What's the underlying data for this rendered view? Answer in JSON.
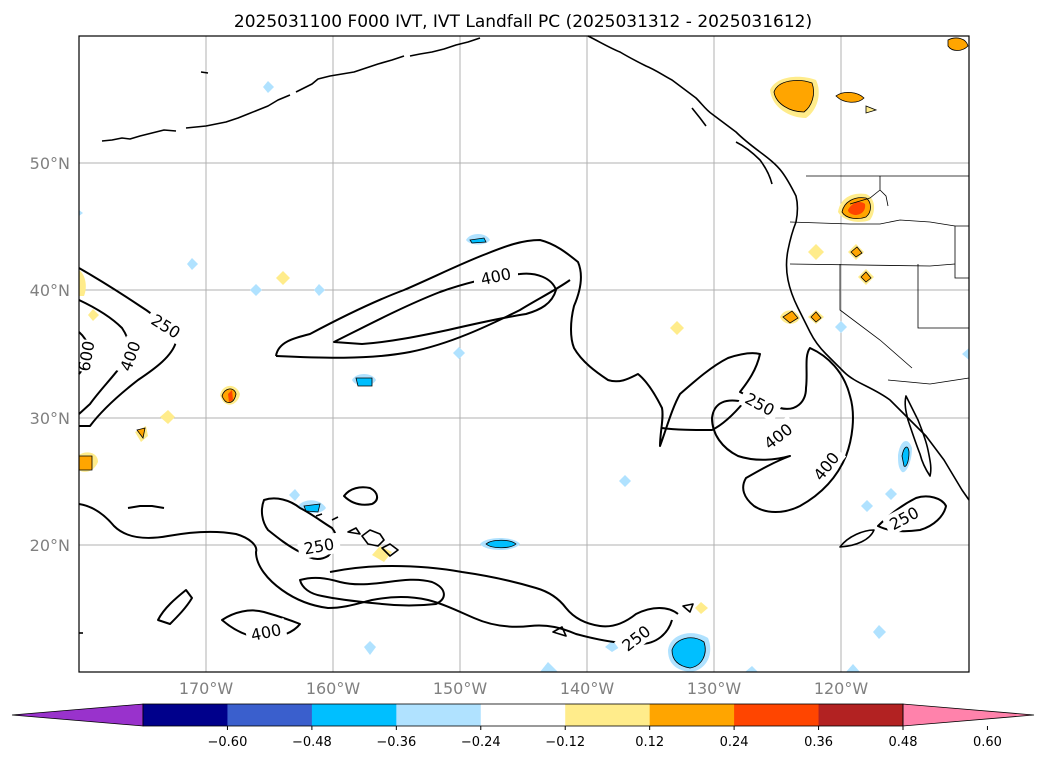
{
  "title": "2025031100 F000 IVT, IVT Landfall PC (2025031312 - 2025031612)",
  "lat_ticks": [
    "50°N",
    "40°N",
    "30°N",
    "20°N"
  ],
  "lon_ticks": [
    "170°W",
    "160°W",
    "150°W",
    "140°W",
    "130°W",
    "120°W"
  ],
  "colorbar": {
    "colors": [
      "#9932cc",
      "#00008b",
      "#3a5fcd",
      "#00bfff",
      "#b0e2ff",
      "#ffffff",
      "#ffec8b",
      "#ffa500",
      "#ff4500",
      "#b22222",
      "#ff82ab"
    ],
    "tick_labels": [
      "−0.60",
      "−0.48",
      "−0.36",
      "−0.24",
      "−0.12",
      "0.12",
      "0.24",
      "0.36",
      "0.48",
      "0.60"
    ]
  },
  "contour_labels": {
    "label_400_north": "400",
    "label_250_west": "250",
    "label_400_west": "400",
    "label_600_west": "600",
    "label_250_east": "250",
    "label_400_east_a": "400",
    "label_400_east_b": "400",
    "label_250_south": "250",
    "label_400_south": "400",
    "label_250_se": "250",
    "label_250_baja": "250"
  },
  "contour_levels": [
    250,
    400,
    600
  ]
}
